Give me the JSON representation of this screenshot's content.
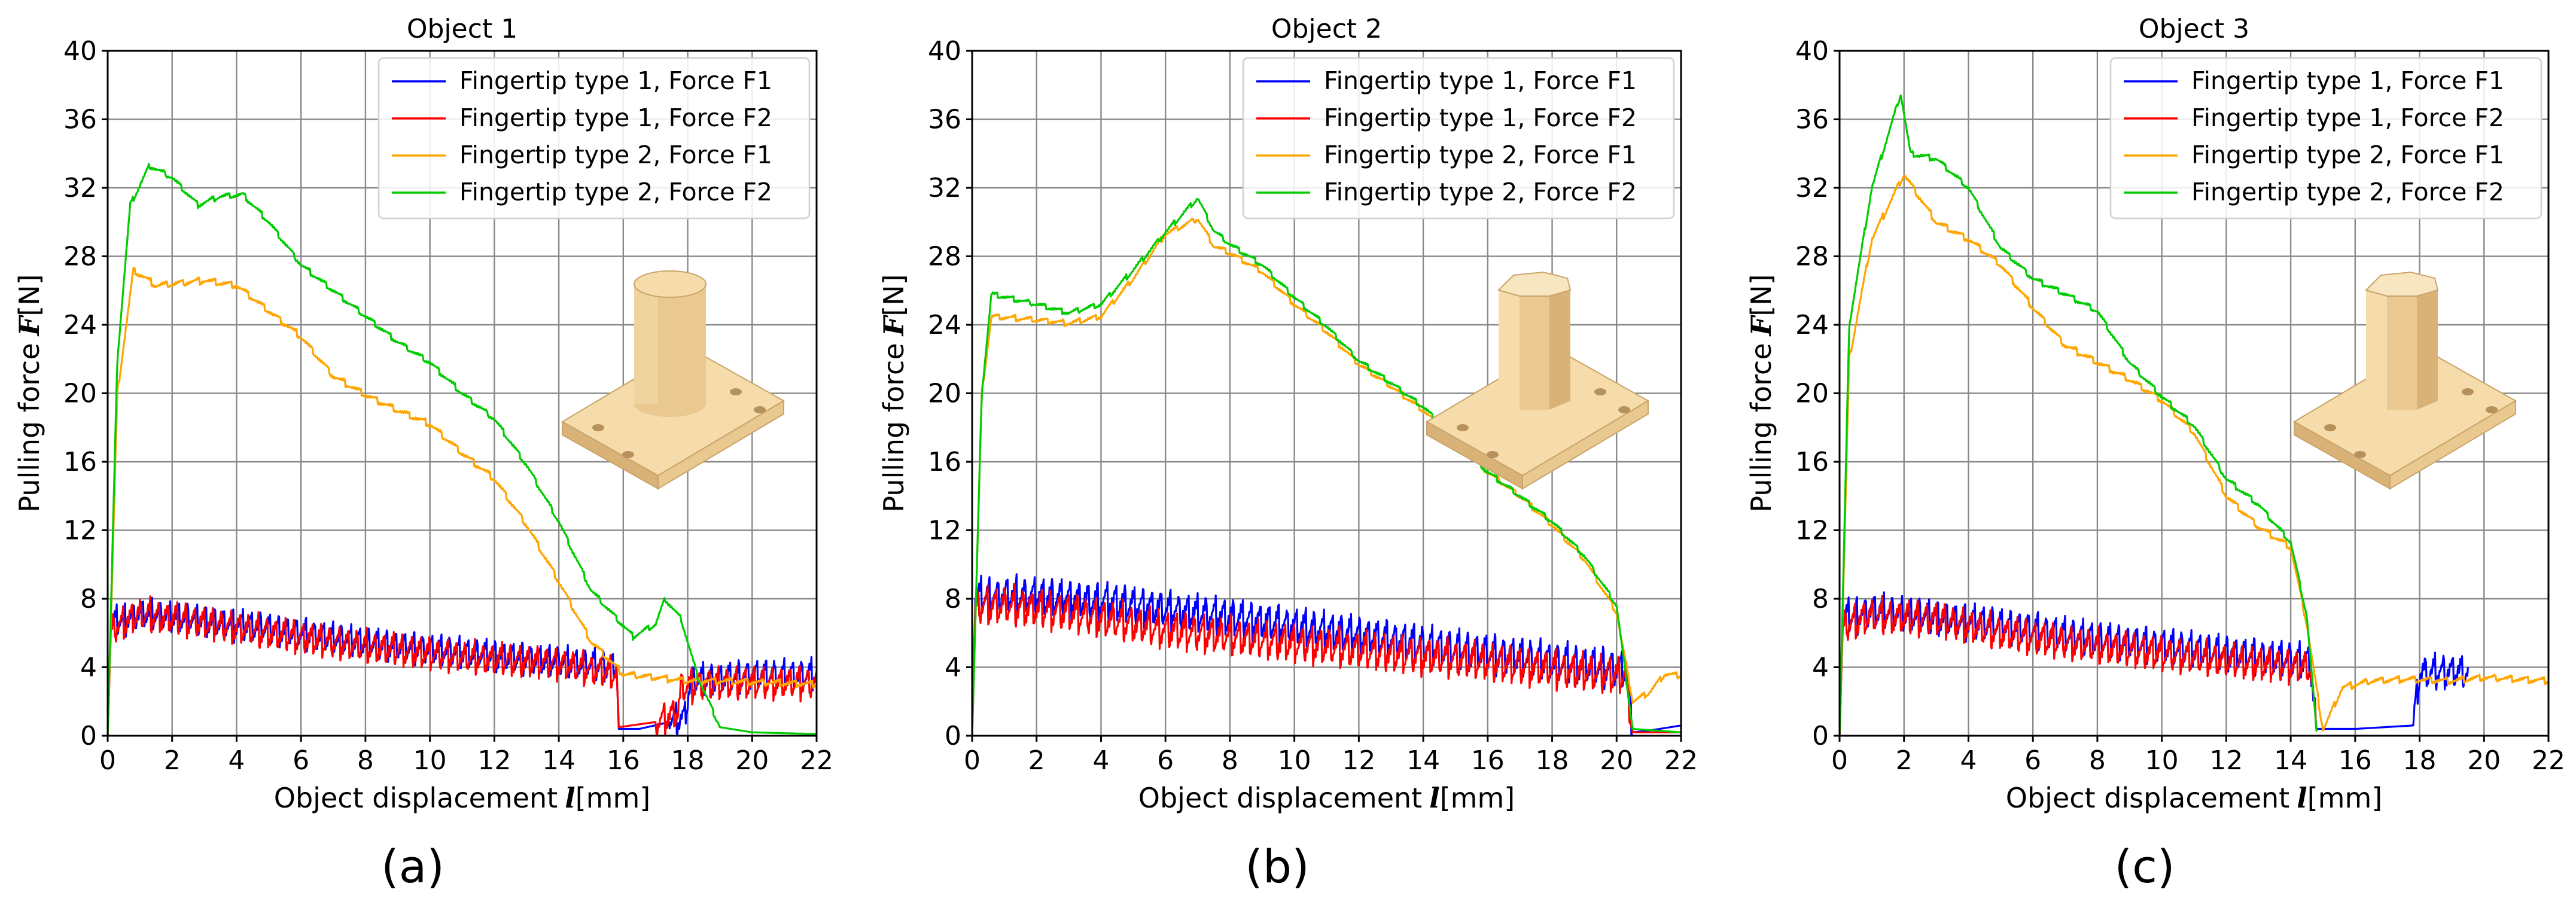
{
  "figure": {
    "panel_labels": [
      "(a)",
      "(b)",
      "(c)"
    ]
  },
  "colors": {
    "blue": "#0000ff",
    "red": "#ff0000",
    "orange": "#ffa500",
    "green": "#00cc00"
  },
  "chart_data": [
    {
      "type": "line",
      "title": "Object 1",
      "xlabel": "Object displacement",
      "xlabel_symbol": "l",
      "xlabel_unit": "[mm]",
      "ylabel": "Pulling force",
      "ylabel_symbol": "F",
      "ylabel_unit": "[N]",
      "xlim": [
        0,
        22
      ],
      "ylim": [
        0,
        40
      ],
      "xticks": [
        0,
        2,
        4,
        6,
        8,
        10,
        12,
        14,
        16,
        18,
        20,
        22
      ],
      "yticks": [
        0,
        4,
        8,
        12,
        16,
        20,
        24,
        28,
        32,
        36,
        40
      ],
      "grid": true,
      "legend_position": "top-right",
      "series": [
        {
          "name": "Fingertip type 1, Force F1",
          "color": "blue",
          "noise": 1.6,
          "period": 0.28,
          "points": [
            [
              0,
              0
            ],
            [
              0.1,
              6.5
            ],
            [
              1,
              7.2
            ],
            [
              3,
              6.8
            ],
            [
              5,
              6.2
            ],
            [
              8,
              5.4
            ],
            [
              11,
              4.8
            ],
            [
              14,
              4.3
            ],
            [
              15.8,
              4
            ],
            [
              15.85,
              0.4
            ],
            [
              16.5,
              0.4
            ],
            [
              17.9,
              1
            ],
            [
              18.1,
              3.2
            ],
            [
              19,
              3.3
            ],
            [
              20,
              3.5
            ],
            [
              22,
              3.5
            ]
          ]
        },
        {
          "name": "Fingertip type 1, Force F2",
          "color": "red",
          "noise": 1.7,
          "period": 0.28,
          "points": [
            [
              0,
              0
            ],
            [
              0.1,
              6.2
            ],
            [
              1,
              7.1
            ],
            [
              3,
              6.6
            ],
            [
              5,
              6
            ],
            [
              8,
              5.2
            ],
            [
              11,
              4.6
            ],
            [
              14,
              4.2
            ],
            [
              15.8,
              3.6
            ],
            [
              15.85,
              0.5
            ],
            [
              17,
              0.8
            ],
            [
              17.7,
              1.4
            ],
            [
              17.8,
              2.8
            ],
            [
              18.5,
              3
            ],
            [
              20,
              3.1
            ],
            [
              22,
              3.1
            ]
          ]
        },
        {
          "name": "Fingertip type 2, Force F1",
          "color": "orange",
          "noise": 0.35,
          "period": 0.5,
          "points": [
            [
              0,
              0
            ],
            [
              0.3,
              20
            ],
            [
              0.8,
              27.2
            ],
            [
              1.5,
              26.3
            ],
            [
              3,
              26.6
            ],
            [
              4,
              26.3
            ],
            [
              5,
              24.8
            ],
            [
              6,
              23.3
            ],
            [
              7,
              21
            ],
            [
              8,
              19.9
            ],
            [
              9,
              19
            ],
            [
              10,
              18.2
            ],
            [
              11,
              16.5
            ],
            [
              12,
              15
            ],
            [
              13,
              12.3
            ],
            [
              14,
              9
            ],
            [
              15,
              5.5
            ],
            [
              16,
              3.6
            ],
            [
              17,
              3.4
            ],
            [
              18,
              3.2
            ],
            [
              19,
              3.2
            ],
            [
              22,
              3
            ]
          ]
        },
        {
          "name": "Fingertip type 2, Force F2",
          "color": "green",
          "noise": 0.3,
          "period": 0.5,
          "points": [
            [
              0,
              0
            ],
            [
              0.3,
              22
            ],
            [
              0.7,
              31
            ],
            [
              1.3,
              33.3
            ],
            [
              2,
              32.6
            ],
            [
              2.8,
              31
            ],
            [
              3.5,
              31.5
            ],
            [
              4.2,
              31.6
            ],
            [
              5,
              30
            ],
            [
              6,
              27.5
            ],
            [
              7,
              26
            ],
            [
              8,
              24.5
            ],
            [
              9,
              23
            ],
            [
              10,
              21.8
            ],
            [
              11,
              20
            ],
            [
              12,
              18.5
            ],
            [
              13,
              15.8
            ],
            [
              14,
              12.5
            ],
            [
              15,
              8.5
            ],
            [
              16.3,
              5.8
            ],
            [
              17,
              6.5
            ],
            [
              17.3,
              8
            ],
            [
              17.8,
              6.8
            ],
            [
              18.3,
              3.5
            ],
            [
              19,
              0.5
            ],
            [
              20,
              0.2
            ],
            [
              22,
              0.1
            ]
          ]
        }
      ]
    },
    {
      "type": "line",
      "title": "Object 2",
      "xlabel": "Object displacement",
      "xlabel_symbol": "l",
      "xlabel_unit": "[mm]",
      "ylabel": "Pulling force",
      "ylabel_symbol": "F",
      "ylabel_unit": "[N]",
      "xlim": [
        0,
        22
      ],
      "ylim": [
        0,
        40
      ],
      "xticks": [
        0,
        2,
        4,
        6,
        8,
        10,
        12,
        14,
        16,
        18,
        20,
        22
      ],
      "yticks": [
        0,
        4,
        8,
        12,
        16,
        20,
        24,
        28,
        32,
        36,
        40
      ],
      "grid": true,
      "legend_position": "top-right",
      "series": [
        {
          "name": "Fingertip type 1, Force F1",
          "color": "blue",
          "noise": 2.0,
          "period": 0.28,
          "points": [
            [
              0,
              0
            ],
            [
              0.1,
              8
            ],
            [
              1,
              8.3
            ],
            [
              3,
              8.1
            ],
            [
              6,
              7.3
            ],
            [
              9,
              6.6
            ],
            [
              12,
              5.8
            ],
            [
              15,
              5
            ],
            [
              18,
              4.3
            ],
            [
              20.3,
              3.8
            ],
            [
              20.5,
              0.2
            ],
            [
              21,
              0.3
            ],
            [
              22,
              0.6
            ]
          ]
        },
        {
          "name": "Fingertip type 1, Force F2",
          "color": "red",
          "noise": 2.0,
          "period": 0.28,
          "points": [
            [
              0,
              0
            ],
            [
              0.1,
              7.6
            ],
            [
              1,
              7.6
            ],
            [
              3,
              7.2
            ],
            [
              6,
              6.2
            ],
            [
              9,
              5.6
            ],
            [
              12,
              5
            ],
            [
              15,
              4.5
            ],
            [
              18,
              3.9
            ],
            [
              20.3,
              3.5
            ],
            [
              20.5,
              0.2
            ],
            [
              22,
              0.2
            ]
          ]
        },
        {
          "name": "Fingertip type 2, Force F1",
          "color": "orange",
          "noise": 0.3,
          "period": 0.5,
          "points": [
            [
              0,
              0
            ],
            [
              0.3,
              20
            ],
            [
              0.6,
              24.5
            ],
            [
              2,
              24.3
            ],
            [
              3,
              24.1
            ],
            [
              4,
              24.5
            ],
            [
              5,
              26.7
            ],
            [
              6,
              29.3
            ],
            [
              7,
              30.2
            ],
            [
              7.5,
              28.6
            ],
            [
              8,
              28.2
            ],
            [
              9,
              27.1
            ],
            [
              10,
              25.2
            ],
            [
              11,
              23.6
            ],
            [
              12,
              21.7
            ],
            [
              13,
              20.4
            ],
            [
              14,
              19
            ],
            [
              15,
              17.2
            ],
            [
              16,
              15.4
            ],
            [
              17,
              14
            ],
            [
              18,
              12.3
            ],
            [
              19,
              10.3
            ],
            [
              20,
              7.2
            ],
            [
              20.5,
              2
            ],
            [
              21,
              2.5
            ],
            [
              21.5,
              3.6
            ],
            [
              22,
              3.5
            ]
          ]
        },
        {
          "name": "Fingertip type 2, Force F2",
          "color": "green",
          "noise": 0.28,
          "period": 0.5,
          "points": [
            [
              0,
              0
            ],
            [
              0.3,
              20
            ],
            [
              0.6,
              25.8
            ],
            [
              2,
              25.2
            ],
            [
              3,
              24.7
            ],
            [
              4,
              25.2
            ],
            [
              5,
              27.2
            ],
            [
              6,
              29.4
            ],
            [
              7,
              31.4
            ],
            [
              7.5,
              29.5
            ],
            [
              8,
              28.7
            ],
            [
              9,
              27.5
            ],
            [
              10,
              25.6
            ],
            [
              11,
              23.9
            ],
            [
              12,
              21.9
            ],
            [
              13,
              20.6
            ],
            [
              14,
              19.2
            ],
            [
              15,
              17.3
            ],
            [
              16,
              15.4
            ],
            [
              17,
              14
            ],
            [
              18,
              12.5
            ],
            [
              19,
              10.5
            ],
            [
              20,
              7.6
            ],
            [
              20.5,
              0.4
            ],
            [
              22,
              0.2
            ]
          ]
        }
      ]
    },
    {
      "type": "line",
      "title": "Object 3",
      "xlabel": "Object displacement",
      "xlabel_symbol": "l",
      "xlabel_unit": "[mm]",
      "ylabel": "Pulling force",
      "ylabel_symbol": "F",
      "ylabel_unit": "[N]",
      "xlim": [
        0,
        22
      ],
      "ylim": [
        0,
        40
      ],
      "xticks": [
        0,
        2,
        4,
        6,
        8,
        10,
        12,
        14,
        16,
        18,
        20,
        22
      ],
      "yticks": [
        0,
        4,
        8,
        12,
        16,
        20,
        24,
        28,
        32,
        36,
        40
      ],
      "grid": true,
      "legend_position": "top-right",
      "series": [
        {
          "name": "Fingertip type 1, Force F1",
          "color": "blue",
          "noise": 1.8,
          "period": 0.28,
          "points": [
            [
              0,
              0
            ],
            [
              0.1,
              6.8
            ],
            [
              1,
              7.4
            ],
            [
              3,
              7
            ],
            [
              5,
              6.4
            ],
            [
              8,
              5.6
            ],
            [
              11,
              5
            ],
            [
              13,
              4.6
            ],
            [
              14.6,
              4.3
            ],
            [
              14.8,
              0.4
            ],
            [
              16,
              0.4
            ],
            [
              17.8,
              0.6
            ],
            [
              18,
              3.6
            ],
            [
              19,
              3.7
            ],
            [
              19.5,
              3.6
            ]
          ]
        },
        {
          "name": "Fingertip type 1, Force F2",
          "color": "red",
          "noise": 1.8,
          "period": 0.28,
          "points": [
            [
              0,
              0
            ],
            [
              0.1,
              6.4
            ],
            [
              1,
              7
            ],
            [
              3,
              6.8
            ],
            [
              5,
              6
            ],
            [
              8,
              5.2
            ],
            [
              11,
              4.6
            ],
            [
              13,
              4.2
            ],
            [
              14.6,
              4
            ],
            [
              14.8,
              0.3
            ]
          ]
        },
        {
          "name": "Fingertip type 2, Force F1",
          "color": "orange",
          "noise": 0.35,
          "period": 0.5,
          "points": [
            [
              0,
              0
            ],
            [
              0.3,
              22
            ],
            [
              1,
              29
            ],
            [
              2,
              32.8
            ],
            [
              3,
              30
            ],
            [
              4,
              29
            ],
            [
              5,
              27.5
            ],
            [
              6,
              25
            ],
            [
              7,
              22.8
            ],
            [
              8,
              21.8
            ],
            [
              9,
              20.8
            ],
            [
              10,
              19.6
            ],
            [
              11,
              17.7
            ],
            [
              12,
              14
            ],
            [
              13,
              12.2
            ],
            [
              14,
              11
            ],
            [
              14.5,
              6.5
            ],
            [
              15,
              0.3
            ],
            [
              15.6,
              2.8
            ],
            [
              16.5,
              3.2
            ],
            [
              17.5,
              3.3
            ],
            [
              19,
              3.2
            ],
            [
              20,
              3.4
            ],
            [
              22,
              3.2
            ]
          ]
        },
        {
          "name": "Fingertip type 2, Force F2",
          "color": "green",
          "noise": 0.3,
          "period": 0.5,
          "points": [
            [
              0,
              0
            ],
            [
              0.3,
              24
            ],
            [
              1,
              32
            ],
            [
              1.9,
              37.5
            ],
            [
              2.2,
              34
            ],
            [
              3,
              33.7
            ],
            [
              4,
              32
            ],
            [
              5,
              28.5
            ],
            [
              6,
              26.7
            ],
            [
              7,
              25.8
            ],
            [
              8,
              24.8
            ],
            [
              9,
              21.8
            ],
            [
              10,
              19.8
            ],
            [
              11,
              18.1
            ],
            [
              12,
              15
            ],
            [
              13,
              13.5
            ],
            [
              14,
              11.3
            ],
            [
              14.5,
              7
            ],
            [
              14.8,
              0.3
            ]
          ]
        }
      ]
    }
  ]
}
